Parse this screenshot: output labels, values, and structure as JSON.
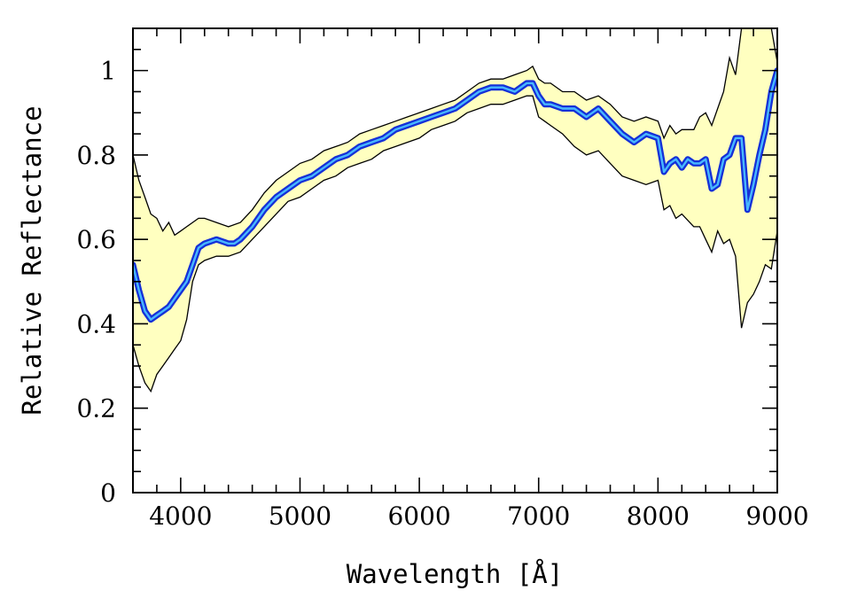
{
  "chart_data": {
    "type": "area",
    "xlabel": "Wavelength [Å]",
    "ylabel": "Relative Reflectance",
    "xlim": [
      3600,
      9000
    ],
    "ylim": [
      0,
      1.1
    ],
    "xticks": [
      4000,
      5000,
      6000,
      7000,
      8000,
      9000
    ],
    "yticks": [
      0,
      0.2,
      0.4,
      0.6,
      0.8,
      1
    ],
    "ytick_labels": [
      "0",
      "0.2",
      "0.4",
      "0.6",
      "0.8",
      "1"
    ],
    "colors": {
      "band_fill": "#ffffc0",
      "band_edge": "#000000",
      "line_outer": "#1530d8",
      "line_inner": "#48b8ff"
    },
    "series": [
      {
        "role": "mean",
        "x": [
          3600,
          3650,
          3700,
          3750,
          3800,
          3850,
          3900,
          3950,
          4000,
          4050,
          4100,
          4150,
          4200,
          4300,
          4400,
          4450,
          4500,
          4600,
          4700,
          4800,
          4900,
          5000,
          5100,
          5200,
          5300,
          5400,
          5500,
          5600,
          5700,
          5800,
          5900,
          6000,
          6100,
          6200,
          6300,
          6400,
          6500,
          6600,
          6700,
          6800,
          6900,
          6950,
          7000,
          7050,
          7100,
          7200,
          7300,
          7400,
          7450,
          7500,
          7600,
          7700,
          7800,
          7850,
          7900,
          8000,
          8050,
          8100,
          8150,
          8200,
          8250,
          8300,
          8350,
          8400,
          8450,
          8500,
          8550,
          8600,
          8650,
          8700,
          8750,
          8800,
          8850,
          8900,
          8950,
          9000
        ],
        "y": [
          0.54,
          0.48,
          0.43,
          0.41,
          0.42,
          0.43,
          0.44,
          0.46,
          0.48,
          0.5,
          0.54,
          0.58,
          0.59,
          0.6,
          0.59,
          0.59,
          0.6,
          0.63,
          0.67,
          0.7,
          0.72,
          0.74,
          0.75,
          0.77,
          0.79,
          0.8,
          0.82,
          0.83,
          0.84,
          0.86,
          0.87,
          0.88,
          0.89,
          0.9,
          0.91,
          0.93,
          0.95,
          0.96,
          0.96,
          0.95,
          0.97,
          0.97,
          0.94,
          0.92,
          0.92,
          0.91,
          0.91,
          0.89,
          0.9,
          0.91,
          0.88,
          0.85,
          0.83,
          0.84,
          0.85,
          0.84,
          0.76,
          0.78,
          0.79,
          0.77,
          0.79,
          0.78,
          0.78,
          0.79,
          0.72,
          0.73,
          0.79,
          0.8,
          0.84,
          0.84,
          0.67,
          0.73,
          0.8,
          0.86,
          0.95,
          1.0
        ]
      },
      {
        "role": "upper",
        "x": [
          3600,
          3650,
          3700,
          3750,
          3800,
          3850,
          3900,
          3950,
          4000,
          4050,
          4100,
          4150,
          4200,
          4300,
          4400,
          4500,
          4600,
          4700,
          4800,
          4900,
          5000,
          5100,
          5200,
          5300,
          5400,
          5500,
          5600,
          5700,
          5800,
          5900,
          6000,
          6100,
          6200,
          6300,
          6400,
          6500,
          6600,
          6700,
          6800,
          6900,
          6950,
          7000,
          7050,
          7100,
          7200,
          7300,
          7400,
          7500,
          7600,
          7700,
          7800,
          7900,
          8000,
          8050,
          8100,
          8150,
          8200,
          8300,
          8350,
          8400,
          8450,
          8500,
          8550,
          8600,
          8650,
          8700,
          8750,
          8800,
          8850,
          8900,
          8950,
          9000
        ],
        "y": [
          0.8,
          0.74,
          0.7,
          0.66,
          0.65,
          0.62,
          0.64,
          0.61,
          0.62,
          0.63,
          0.64,
          0.65,
          0.65,
          0.64,
          0.63,
          0.64,
          0.67,
          0.71,
          0.74,
          0.76,
          0.78,
          0.79,
          0.81,
          0.82,
          0.83,
          0.85,
          0.86,
          0.87,
          0.88,
          0.89,
          0.9,
          0.91,
          0.92,
          0.93,
          0.95,
          0.97,
          0.98,
          0.98,
          0.99,
          1.0,
          1.01,
          0.98,
          0.97,
          0.97,
          0.95,
          0.95,
          0.93,
          0.94,
          0.92,
          0.89,
          0.88,
          0.89,
          0.88,
          0.84,
          0.87,
          0.85,
          0.86,
          0.86,
          0.89,
          0.9,
          0.87,
          0.91,
          0.95,
          1.03,
          0.99,
          1.1,
          1.12,
          1.1,
          1.1,
          1.1,
          1.1,
          1.02
        ]
      },
      {
        "role": "lower",
        "x": [
          3600,
          3650,
          3700,
          3750,
          3800,
          3850,
          3900,
          3950,
          4000,
          4050,
          4100,
          4150,
          4200,
          4300,
          4400,
          4500,
          4600,
          4700,
          4800,
          4900,
          5000,
          5100,
          5200,
          5300,
          5400,
          5500,
          5600,
          5700,
          5800,
          5900,
          6000,
          6100,
          6200,
          6300,
          6400,
          6500,
          6600,
          6700,
          6800,
          6900,
          6950,
          7000,
          7050,
          7100,
          7200,
          7300,
          7400,
          7500,
          7600,
          7700,
          7800,
          7900,
          8000,
          8050,
          8100,
          8150,
          8200,
          8300,
          8350,
          8400,
          8450,
          8500,
          8550,
          8600,
          8650,
          8700,
          8750,
          8800,
          8850,
          8900,
          8950,
          9000
        ],
        "y": [
          0.35,
          0.3,
          0.26,
          0.24,
          0.28,
          0.3,
          0.32,
          0.34,
          0.36,
          0.41,
          0.5,
          0.54,
          0.55,
          0.56,
          0.56,
          0.57,
          0.6,
          0.63,
          0.66,
          0.69,
          0.7,
          0.72,
          0.74,
          0.75,
          0.77,
          0.78,
          0.79,
          0.81,
          0.82,
          0.83,
          0.84,
          0.86,
          0.87,
          0.88,
          0.9,
          0.91,
          0.92,
          0.92,
          0.93,
          0.94,
          0.94,
          0.89,
          0.88,
          0.87,
          0.85,
          0.82,
          0.8,
          0.81,
          0.78,
          0.75,
          0.74,
          0.73,
          0.74,
          0.67,
          0.68,
          0.65,
          0.66,
          0.63,
          0.63,
          0.6,
          0.57,
          0.62,
          0.59,
          0.6,
          0.56,
          0.39,
          0.45,
          0.47,
          0.5,
          0.54,
          0.53,
          0.62
        ]
      }
    ]
  }
}
